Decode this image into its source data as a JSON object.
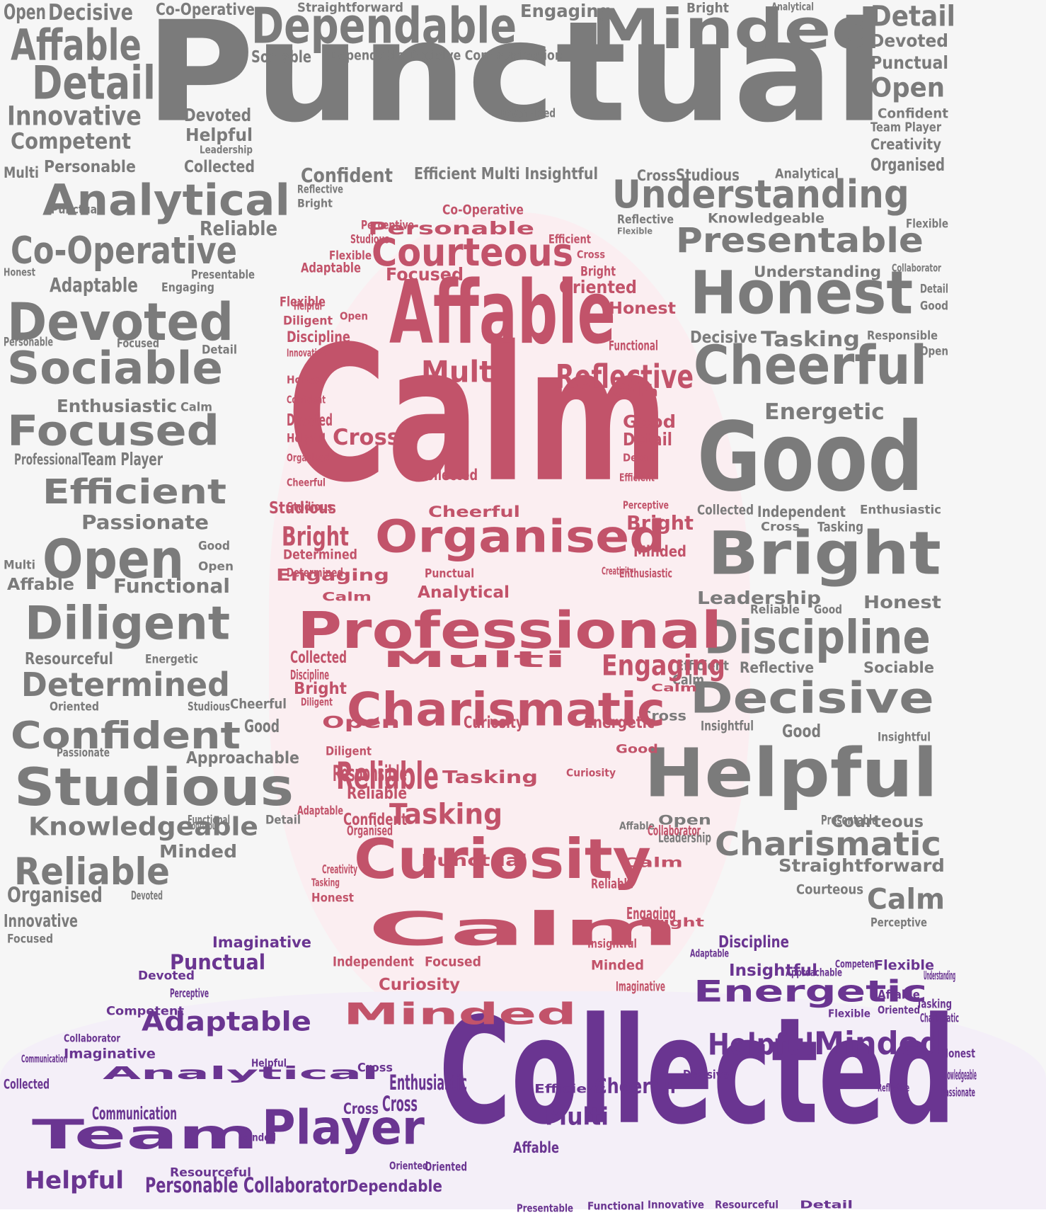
{
  "colors": {
    "background": "#f6f6f6",
    "grey": "#7b7b7b",
    "head": "#c2536a",
    "shoulders": "#6a3591"
  },
  "words": [
    {
      "text": "Punctual",
      "tone": "grey"
    },
    {
      "text": "Calm",
      "tone": "head"
    },
    {
      "text": "Collected",
      "tone": "shoulders"
    },
    {
      "text": "Dependable",
      "tone": "grey"
    },
    {
      "text": "Minded",
      "tone": "grey"
    },
    {
      "text": "Affable",
      "tone": "grey"
    },
    {
      "text": "Detail",
      "tone": "grey"
    },
    {
      "text": "Detail",
      "tone": "grey"
    },
    {
      "text": "Open",
      "tone": "grey"
    },
    {
      "text": "Decisive",
      "tone": "grey"
    },
    {
      "text": "Co-Operative",
      "tone": "grey"
    },
    {
      "text": "Straightforward",
      "tone": "grey"
    },
    {
      "text": "Engaging",
      "tone": "grey"
    },
    {
      "text": "Bright",
      "tone": "grey"
    },
    {
      "text": "Analytical",
      "tone": "grey"
    },
    {
      "text": "Devoted",
      "tone": "grey"
    },
    {
      "text": "Punctual",
      "tone": "grey"
    },
    {
      "text": "Open",
      "tone": "grey"
    },
    {
      "text": "Confident",
      "tone": "grey"
    },
    {
      "text": "Team Player",
      "tone": "grey"
    },
    {
      "text": "Creativity",
      "tone": "grey"
    },
    {
      "text": "Organised",
      "tone": "grey"
    },
    {
      "text": "Innovative",
      "tone": "grey"
    },
    {
      "text": "Competent",
      "tone": "grey"
    },
    {
      "text": "Personable",
      "tone": "grey"
    },
    {
      "text": "Collected",
      "tone": "grey"
    },
    {
      "text": "Multi",
      "tone": "grey"
    },
    {
      "text": "Devoted",
      "tone": "grey"
    },
    {
      "text": "Helpful",
      "tone": "grey"
    },
    {
      "text": "Sociable",
      "tone": "grey"
    },
    {
      "text": "Dependable Decisive Communication",
      "tone": "grey"
    },
    {
      "text": "Determined",
      "tone": "grey"
    },
    {
      "text": "Leadership",
      "tone": "grey"
    },
    {
      "text": "Confident",
      "tone": "grey"
    },
    {
      "text": "Efficient Multi Insightful",
      "tone": "grey"
    },
    {
      "text": "Cross",
      "tone": "grey"
    },
    {
      "text": "Studious",
      "tone": "grey"
    },
    {
      "text": "Analytical",
      "tone": "grey"
    },
    {
      "text": "Analytical",
      "tone": "grey"
    },
    {
      "text": "Understanding",
      "tone": "grey"
    },
    {
      "text": "Punctual",
      "tone": "grey"
    },
    {
      "text": "Reflective",
      "tone": "grey"
    },
    {
      "text": "Bright",
      "tone": "grey"
    },
    {
      "text": "Reliable",
      "tone": "grey"
    },
    {
      "text": "Co-Operative",
      "tone": "grey"
    },
    {
      "text": "Presentable",
      "tone": "grey"
    },
    {
      "text": "Knowledgeable",
      "tone": "grey"
    },
    {
      "text": "Reflective",
      "tone": "grey"
    },
    {
      "text": "Flexible",
      "tone": "grey"
    },
    {
      "text": "Flexible",
      "tone": "grey"
    },
    {
      "text": "Presentable",
      "tone": "grey"
    },
    {
      "text": "Honest",
      "tone": "grey"
    },
    {
      "text": "Adaptable",
      "tone": "grey"
    },
    {
      "text": "Engaging",
      "tone": "grey"
    },
    {
      "text": "Understanding",
      "tone": "grey"
    },
    {
      "text": "Collaborator",
      "tone": "grey"
    },
    {
      "text": "Devoted",
      "tone": "grey"
    },
    {
      "text": "Honest",
      "tone": "grey"
    },
    {
      "text": "Detail",
      "tone": "grey"
    },
    {
      "text": "Good",
      "tone": "grey"
    },
    {
      "text": "Decisive",
      "tone": "grey"
    },
    {
      "text": "Tasking",
      "tone": "grey"
    },
    {
      "text": "Responsible",
      "tone": "grey"
    },
    {
      "text": "Personable",
      "tone": "grey"
    },
    {
      "text": "Focused",
      "tone": "grey"
    },
    {
      "text": "Sociable",
      "tone": "grey"
    },
    {
      "text": "Detail",
      "tone": "grey"
    },
    {
      "text": "Cheerful",
      "tone": "grey"
    },
    {
      "text": "Open",
      "tone": "grey"
    },
    {
      "text": "Enthusiastic",
      "tone": "grey"
    },
    {
      "text": "Calm",
      "tone": "grey"
    },
    {
      "text": "Energetic",
      "tone": "grey"
    },
    {
      "text": "Focused",
      "tone": "grey"
    },
    {
      "text": "Good",
      "tone": "grey"
    },
    {
      "text": "Professional",
      "tone": "grey"
    },
    {
      "text": "Team Player",
      "tone": "grey"
    },
    {
      "text": "Efficient",
      "tone": "grey"
    },
    {
      "text": "Collected",
      "tone": "grey"
    },
    {
      "text": "Independent",
      "tone": "grey"
    },
    {
      "text": "Enthusiastic",
      "tone": "grey"
    },
    {
      "text": "Passionate",
      "tone": "grey"
    },
    {
      "text": "Open",
      "tone": "grey"
    },
    {
      "text": "Good",
      "tone": "grey"
    },
    {
      "text": "Open",
      "tone": "grey"
    },
    {
      "text": "Multi",
      "tone": "grey"
    },
    {
      "text": "Affable",
      "tone": "grey"
    },
    {
      "text": "Functional",
      "tone": "grey"
    },
    {
      "text": "Cross",
      "tone": "grey"
    },
    {
      "text": "Tasking",
      "tone": "grey"
    },
    {
      "text": "Bright",
      "tone": "grey"
    },
    {
      "text": "Leadership",
      "tone": "grey"
    },
    {
      "text": "Honest",
      "tone": "grey"
    },
    {
      "text": "Diligent",
      "tone": "grey"
    },
    {
      "text": "Reliable",
      "tone": "grey"
    },
    {
      "text": "Good",
      "tone": "grey"
    },
    {
      "text": "Discipline",
      "tone": "grey"
    },
    {
      "text": "Resourceful",
      "tone": "grey"
    },
    {
      "text": "Energetic",
      "tone": "grey"
    },
    {
      "text": "Efficient",
      "tone": "grey"
    },
    {
      "text": "Reflective",
      "tone": "grey"
    },
    {
      "text": "Sociable",
      "tone": "grey"
    },
    {
      "text": "Determined",
      "tone": "grey"
    },
    {
      "text": "Calm",
      "tone": "grey"
    },
    {
      "text": "Decisive",
      "tone": "grey"
    },
    {
      "text": "Oriented",
      "tone": "grey"
    },
    {
      "text": "Studious",
      "tone": "grey"
    },
    {
      "text": "Cheerful",
      "tone": "grey"
    },
    {
      "text": "Cross",
      "tone": "grey"
    },
    {
      "text": "Confident",
      "tone": "grey"
    },
    {
      "text": "Good",
      "tone": "grey"
    },
    {
      "text": "Insightful",
      "tone": "grey"
    },
    {
      "text": "Good",
      "tone": "grey"
    },
    {
      "text": "Insightful",
      "tone": "grey"
    },
    {
      "text": "Passionate",
      "tone": "grey"
    },
    {
      "text": "Approachable",
      "tone": "grey"
    },
    {
      "text": "Studious",
      "tone": "grey"
    },
    {
      "text": "Helpful",
      "tone": "grey"
    },
    {
      "text": "Knowledgeable",
      "tone": "grey"
    },
    {
      "text": "Functional",
      "tone": "grey"
    },
    {
      "text": "Courteous",
      "tone": "grey"
    },
    {
      "text": "Detail",
      "tone": "grey"
    },
    {
      "text": "Open",
      "tone": "grey"
    },
    {
      "text": "Presentable",
      "tone": "grey"
    },
    {
      "text": "Courteous",
      "tone": "grey"
    },
    {
      "text": "Charismatic",
      "tone": "grey"
    },
    {
      "text": "Leadership",
      "tone": "grey"
    },
    {
      "text": "Minded",
      "tone": "grey"
    },
    {
      "text": "Reliable",
      "tone": "grey"
    },
    {
      "text": "Affable",
      "tone": "grey"
    },
    {
      "text": "Straightforward",
      "tone": "grey"
    },
    {
      "text": "Courteous",
      "tone": "grey"
    },
    {
      "text": "Calm",
      "tone": "grey"
    },
    {
      "text": "Organised",
      "tone": "grey"
    },
    {
      "text": "Devoted",
      "tone": "grey"
    },
    {
      "text": "Innovative",
      "tone": "grey"
    },
    {
      "text": "Focused",
      "tone": "grey"
    },
    {
      "text": "Perceptive",
      "tone": "grey"
    },
    {
      "text": "Co-Operative",
      "tone": "head"
    },
    {
      "text": "Personable",
      "tone": "head"
    },
    {
      "text": "Perceptive",
      "tone": "head"
    },
    {
      "text": "Studious",
      "tone": "head"
    },
    {
      "text": "Efficient",
      "tone": "head"
    },
    {
      "text": "Flexible",
      "tone": "head"
    },
    {
      "text": "Courteous",
      "tone": "head"
    },
    {
      "text": "Cross",
      "tone": "head"
    },
    {
      "text": "Adaptable",
      "tone": "head"
    },
    {
      "text": "Bright",
      "tone": "head"
    },
    {
      "text": "Focused",
      "tone": "head"
    },
    {
      "text": "Oriented",
      "tone": "head"
    },
    {
      "text": "Flexible",
      "tone": "head"
    },
    {
      "text": "Helpful",
      "tone": "head"
    },
    {
      "text": "Affable",
      "tone": "head"
    },
    {
      "text": "Diligent",
      "tone": "head"
    },
    {
      "text": "Open",
      "tone": "head"
    },
    {
      "text": "Honest",
      "tone": "head"
    },
    {
      "text": "Discipline",
      "tone": "head"
    },
    {
      "text": "Functional",
      "tone": "head"
    },
    {
      "text": "Multi",
      "tone": "head"
    },
    {
      "text": "Reflective",
      "tone": "head"
    },
    {
      "text": "Innovative",
      "tone": "head"
    },
    {
      "text": "Honest",
      "tone": "head"
    },
    {
      "text": "Confident",
      "tone": "head"
    },
    {
      "text": "Devoted",
      "tone": "head"
    },
    {
      "text": "Calm",
      "tone": "head"
    },
    {
      "text": "Cross",
      "tone": "head"
    },
    {
      "text": "Good",
      "tone": "head"
    },
    {
      "text": "Detail",
      "tone": "head"
    },
    {
      "text": "Detail",
      "tone": "head"
    },
    {
      "text": "Helpful",
      "tone": "head"
    },
    {
      "text": "Efficient",
      "tone": "head"
    },
    {
      "text": "Organised",
      "tone": "head"
    },
    {
      "text": "Cheerful",
      "tone": "head"
    },
    {
      "text": "Studious",
      "tone": "head"
    },
    {
      "text": "Collected",
      "tone": "head"
    },
    {
      "text": "Cheerful",
      "tone": "head"
    },
    {
      "text": "Studious",
      "tone": "head"
    },
    {
      "text": "Perceptive",
      "tone": "head"
    },
    {
      "text": "Bright",
      "tone": "head"
    },
    {
      "text": "Bright",
      "tone": "head"
    },
    {
      "text": "Organised",
      "tone": "head"
    },
    {
      "text": "Minded",
      "tone": "head"
    },
    {
      "text": "Determined",
      "tone": "head"
    },
    {
      "text": "Determined",
      "tone": "head"
    },
    {
      "text": "Creativity",
      "tone": "head"
    },
    {
      "text": "Engaging",
      "tone": "head"
    },
    {
      "text": "Analytical",
      "tone": "head"
    },
    {
      "text": "Punctual",
      "tone": "head"
    },
    {
      "text": "Enthusiastic",
      "tone": "head"
    },
    {
      "text": "Calm",
      "tone": "head"
    },
    {
      "text": "Professional",
      "tone": "head"
    },
    {
      "text": "Collected",
      "tone": "head"
    },
    {
      "text": "Multi",
      "tone": "head"
    },
    {
      "text": "Engaging",
      "tone": "head"
    },
    {
      "text": "Discipline",
      "tone": "head"
    },
    {
      "text": "Bright",
      "tone": "head"
    },
    {
      "text": "Charismatic",
      "tone": "head"
    },
    {
      "text": "Calm",
      "tone": "head"
    },
    {
      "text": "Diligent",
      "tone": "head"
    },
    {
      "text": "Open",
      "tone": "head"
    },
    {
      "text": "Curiosity",
      "tone": "head"
    },
    {
      "text": "Energetic",
      "tone": "head"
    },
    {
      "text": "Diligent",
      "tone": "head"
    },
    {
      "text": "Reliable",
      "tone": "head"
    },
    {
      "text": "Good",
      "tone": "head"
    },
    {
      "text": "Responsible",
      "tone": "head"
    },
    {
      "text": "Tasking",
      "tone": "head"
    },
    {
      "text": "Curiosity",
      "tone": "head"
    },
    {
      "text": "Reliable",
      "tone": "head"
    },
    {
      "text": "Tasking",
      "tone": "head"
    },
    {
      "text": "Adaptable",
      "tone": "head"
    },
    {
      "text": "Confident",
      "tone": "head"
    },
    {
      "text": "Organised",
      "tone": "head"
    },
    {
      "text": "Curiosity",
      "tone": "head"
    },
    {
      "text": "Collaborator",
      "tone": "head"
    },
    {
      "text": "Punctual",
      "tone": "head"
    },
    {
      "text": "Calm",
      "tone": "head"
    },
    {
      "text": "Creativity",
      "tone": "head"
    },
    {
      "text": "Tasking",
      "tone": "head"
    },
    {
      "text": "Honest",
      "tone": "head"
    },
    {
      "text": "Reliable",
      "tone": "head"
    },
    {
      "text": "Calm",
      "tone": "head"
    },
    {
      "text": "Engaging",
      "tone": "head"
    },
    {
      "text": "Bright",
      "tone": "head"
    },
    {
      "text": "Independent",
      "tone": "head"
    },
    {
      "text": "Focused",
      "tone": "head"
    },
    {
      "text": "Insightful",
      "tone": "head"
    },
    {
      "text": "Minded",
      "tone": "head"
    },
    {
      "text": "Curiosity",
      "tone": "head"
    },
    {
      "text": "Imaginative",
      "tone": "head"
    },
    {
      "text": "Minded",
      "tone": "head"
    },
    {
      "text": "Imaginative",
      "tone": "shoulders"
    },
    {
      "text": "Punctual",
      "tone": "shoulders"
    },
    {
      "text": "Devoted",
      "tone": "shoulders"
    },
    {
      "text": "Perceptive",
      "tone": "shoulders"
    },
    {
      "text": "Competent",
      "tone": "shoulders"
    },
    {
      "text": "Adaptable",
      "tone": "shoulders"
    },
    {
      "text": "Collaborator",
      "tone": "shoulders"
    },
    {
      "text": "Imaginative",
      "tone": "shoulders"
    },
    {
      "text": "Communication",
      "tone": "shoulders"
    },
    {
      "text": "Helpful",
      "tone": "shoulders"
    },
    {
      "text": "Analytical",
      "tone": "shoulders"
    },
    {
      "text": "Collected",
      "tone": "shoulders"
    },
    {
      "text": "Cross",
      "tone": "shoulders"
    },
    {
      "text": "Enthusiastic",
      "tone": "shoulders"
    },
    {
      "text": "Cheerful",
      "tone": "shoulders"
    },
    {
      "text": "Efficient",
      "tone": "shoulders"
    },
    {
      "text": "Decisive",
      "tone": "shoulders"
    },
    {
      "text": "Communication",
      "tone": "shoulders"
    },
    {
      "text": "Cross",
      "tone": "shoulders"
    },
    {
      "text": "Team",
      "tone": "shoulders"
    },
    {
      "text": "Player",
      "tone": "shoulders"
    },
    {
      "text": "Cross",
      "tone": "shoulders"
    },
    {
      "text": "Minded",
      "tone": "shoulders"
    },
    {
      "text": "Multi",
      "tone": "shoulders"
    },
    {
      "text": "Affable",
      "tone": "shoulders"
    },
    {
      "text": "Oriented",
      "tone": "shoulders"
    },
    {
      "text": "Oriented",
      "tone": "shoulders"
    },
    {
      "text": "Dependable",
      "tone": "shoulders"
    },
    {
      "text": "Helpful",
      "tone": "shoulders"
    },
    {
      "text": "Resourceful",
      "tone": "shoulders"
    },
    {
      "text": "Personable Collaborator",
      "tone": "shoulders"
    },
    {
      "text": "Discipline",
      "tone": "shoulders"
    },
    {
      "text": "Adaptable",
      "tone": "shoulders"
    },
    {
      "text": "Insightful",
      "tone": "shoulders"
    },
    {
      "text": "Competent",
      "tone": "shoulders"
    },
    {
      "text": "Flexible",
      "tone": "shoulders"
    },
    {
      "text": "Understanding",
      "tone": "shoulders"
    },
    {
      "text": "Approachable",
      "tone": "shoulders"
    },
    {
      "text": "Energetic",
      "tone": "shoulders"
    },
    {
      "text": "Affable",
      "tone": "shoulders"
    },
    {
      "text": "Tasking",
      "tone": "shoulders"
    },
    {
      "text": "Charismatic",
      "tone": "shoulders"
    },
    {
      "text": "Oriented",
      "tone": "shoulders"
    },
    {
      "text": "Flexible",
      "tone": "shoulders"
    },
    {
      "text": "Helpful",
      "tone": "shoulders"
    },
    {
      "text": "Minded",
      "tone": "shoulders"
    },
    {
      "text": "Honest",
      "tone": "shoulders"
    },
    {
      "text": "Knowledgeable",
      "tone": "shoulders"
    },
    {
      "text": "Passionate",
      "tone": "shoulders"
    },
    {
      "text": "Reflective",
      "tone": "shoulders"
    },
    {
      "text": "Presentable",
      "tone": "shoulders"
    },
    {
      "text": "Functional",
      "tone": "shoulders"
    },
    {
      "text": "Innovative",
      "tone": "shoulders"
    },
    {
      "text": "Resourceful",
      "tone": "shoulders"
    },
    {
      "text": "Detail",
      "tone": "shoulders"
    }
  ]
}
